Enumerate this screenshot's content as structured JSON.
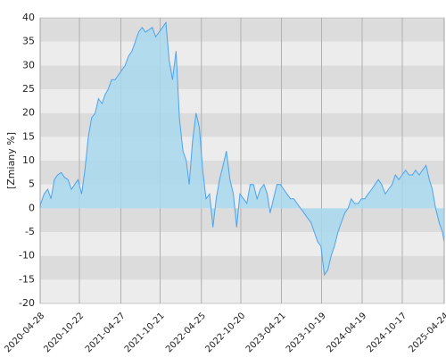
{
  "chart_data": {
    "type": "area",
    "y_label": "[Zmiany %]",
    "x": [
      "2020-04-28",
      "2020-05-01",
      "2020-05-16",
      "2020-06-01",
      "2020-06-16",
      "2020-07-01",
      "2020-07-16",
      "2020-08-01",
      "2020-08-16",
      "2020-09-01",
      "2020-09-16",
      "2020-10-01",
      "2020-10-16",
      "2020-11-01",
      "2020-11-16",
      "2020-12-01",
      "2020-12-16",
      "2021-01-01",
      "2021-01-16",
      "2021-02-01",
      "2021-02-16",
      "2021-03-01",
      "2021-03-16",
      "2021-04-01",
      "2021-04-16",
      "2021-05-01",
      "2021-05-16",
      "2021-06-01",
      "2021-06-16",
      "2021-07-01",
      "2021-07-16",
      "2021-08-01",
      "2021-08-16",
      "2021-09-01",
      "2021-09-16",
      "2021-10-01",
      "2021-10-16",
      "2021-11-01",
      "2021-11-16",
      "2021-12-01",
      "2021-12-16",
      "2022-01-01",
      "2022-01-16",
      "2022-02-01",
      "2022-02-16",
      "2022-03-01",
      "2022-03-16",
      "2022-04-01",
      "2022-04-16",
      "2022-05-01",
      "2022-05-16",
      "2022-06-01",
      "2022-06-16",
      "2022-07-01",
      "2022-07-16",
      "2022-08-01",
      "2022-08-16",
      "2022-09-01",
      "2022-09-16",
      "2022-10-01",
      "2022-10-16",
      "2022-11-01",
      "2022-11-16",
      "2022-12-01",
      "2022-12-16",
      "2023-01-01",
      "2023-01-16",
      "2023-02-01",
      "2023-02-16",
      "2023-03-01",
      "2023-03-16",
      "2023-04-01",
      "2023-04-16",
      "2023-05-01",
      "2023-05-16",
      "2023-06-01",
      "2023-06-16",
      "2023-07-01",
      "2023-07-16",
      "2023-08-01",
      "2023-08-16",
      "2023-09-01",
      "2023-09-16",
      "2023-10-01",
      "2023-10-16",
      "2023-11-01",
      "2023-11-16",
      "2023-12-01",
      "2023-12-16",
      "2024-01-01",
      "2024-01-16",
      "2024-02-01",
      "2024-02-16",
      "2024-03-01",
      "2024-03-16",
      "2024-04-01",
      "2024-04-16",
      "2024-05-01",
      "2024-05-16",
      "2024-06-01",
      "2024-06-16",
      "2024-07-01",
      "2024-07-16",
      "2024-08-01",
      "2024-08-16",
      "2024-09-01",
      "2024-09-16",
      "2024-10-01",
      "2024-10-16",
      "2024-11-01",
      "2024-11-16",
      "2024-12-01",
      "2024-12-16",
      "2025-01-01",
      "2025-01-16",
      "2025-02-01",
      "2025-02-16",
      "2025-03-01",
      "2025-03-16",
      "2025-04-01",
      "2025-04-16",
      "2025-04-24"
    ],
    "values": [
      0,
      1,
      3,
      4,
      2,
      6,
      7,
      7.5,
      6.5,
      6,
      4,
      5,
      6,
      3,
      8,
      15,
      19,
      20,
      23,
      22,
      24,
      25,
      27,
      27,
      28,
      29,
      30,
      32,
      33,
      35,
      37,
      38,
      37,
      37.5,
      38,
      36,
      37,
      38,
      39,
      31,
      27,
      33,
      19,
      12,
      10,
      5,
      14,
      20,
      17,
      8,
      2,
      3,
      -4,
      2,
      6,
      9,
      12,
      6,
      3,
      -4,
      3,
      2,
      1,
      5,
      5,
      2,
      4,
      5,
      3,
      -1,
      2,
      5,
      5,
      4,
      3,
      2,
      2,
      1,
      0,
      -1,
      -2,
      -3,
      -5,
      -7,
      -8,
      -14,
      -13,
      -10,
      -8,
      -5,
      -3,
      -1,
      0,
      2,
      1,
      1,
      2,
      2,
      3,
      4,
      5,
      6,
      5,
      3,
      4,
      5,
      7,
      6,
      7,
      8,
      7,
      7,
      8,
      7,
      8,
      9,
      6,
      4,
      0,
      -3,
      -5,
      -7
    ],
    "line_color": "#4da3f0",
    "fill_color": "#a8d8ee",
    "xlim": [
      "2020-04-28",
      "2025-04-24"
    ],
    "xticks": [
      "2020-04-28",
      "2020-10-22",
      "2021-04-27",
      "2021-10-21",
      "2022-04-25",
      "2022-10-20",
      "2023-04-21",
      "2023-10-19",
      "2024-04-19",
      "2024-10-17",
      "2025-04-24"
    ],
    "ylim": [
      -20,
      40
    ],
    "yticks": [
      -20,
      -15,
      -10,
      -5,
      0,
      5,
      10,
      15,
      20,
      25,
      30,
      35,
      40
    ],
    "grid": true
  }
}
